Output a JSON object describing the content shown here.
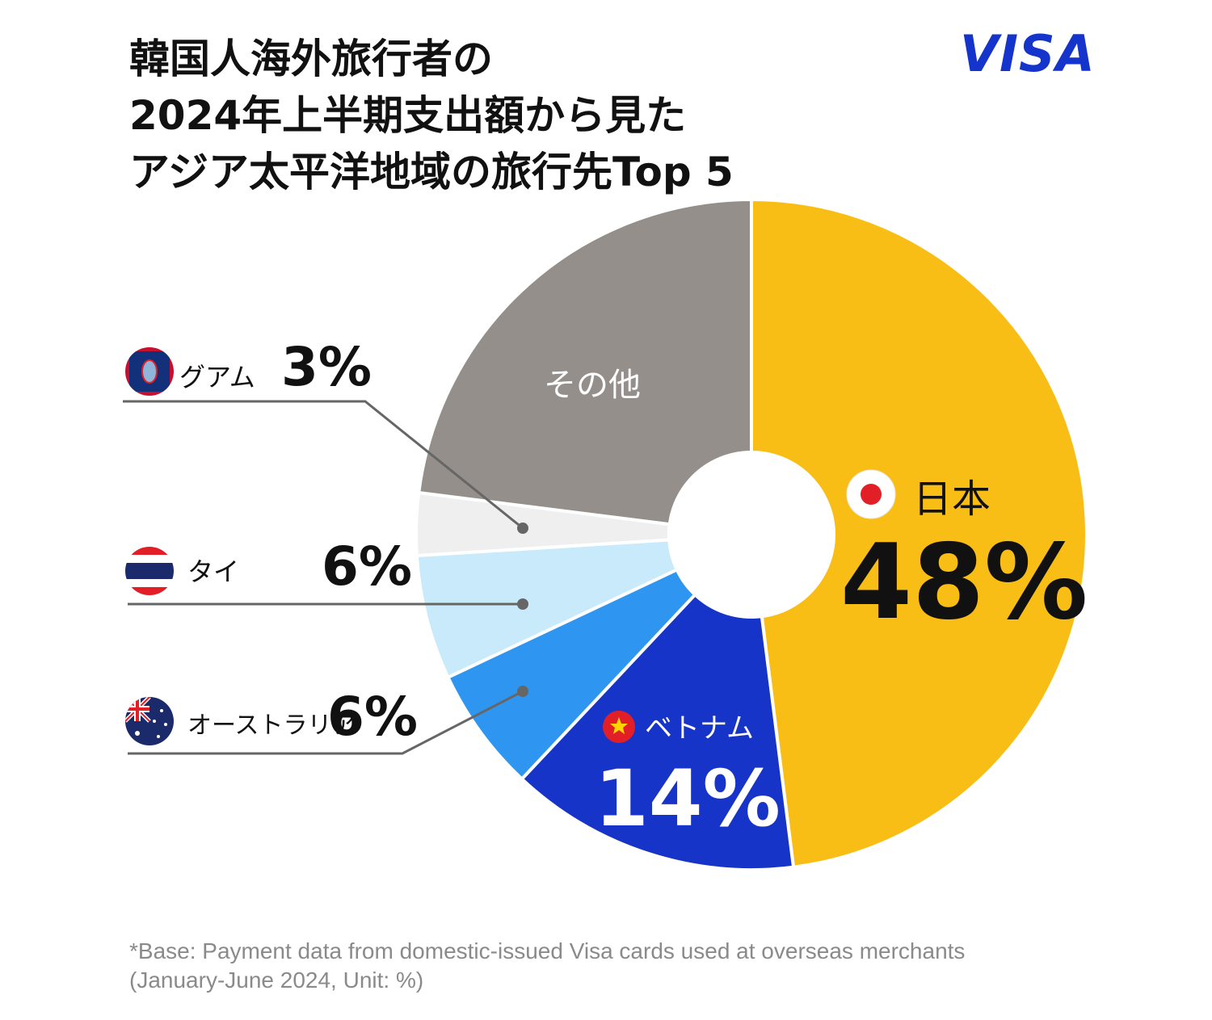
{
  "title": {
    "line1": "韓国人海外旅行者の",
    "line2": "2024年上半期支出額から見た",
    "line3": "アジア太平洋地域の旅行先Top 5"
  },
  "brand": {
    "logo_text": "VISA",
    "color": "#1434CB"
  },
  "footnote": {
    "line1": "*Base: Payment data from domestic-issued Visa cards used at overseas merchants",
    "line2": "(January-June 2024, Unit: %)"
  },
  "chart_data": {
    "type": "pie",
    "title": "韓国人海外旅行者の2024年上半期支出額から見たアジア太平洋地域の旅行先Top 5",
    "unit": "%",
    "slices": [
      {
        "label": "日本",
        "value": 48,
        "value_label": "48%",
        "color": "#F9BE16",
        "flag": "japan-flag-icon"
      },
      {
        "label": "ベトナム",
        "value": 14,
        "value_label": "14%",
        "color": "#1634C8",
        "flag": "vietnam-flag-icon"
      },
      {
        "label": "オーストラリア",
        "value": 6,
        "value_label": "6%",
        "color": "#2E96F0",
        "flag": "australia-flag-icon"
      },
      {
        "label": "タイ",
        "value": 6,
        "value_label": "6%",
        "color": "#C8EAFB",
        "flag": "thailand-flag-icon"
      },
      {
        "label": "グアム",
        "value": 3,
        "value_label": "3%",
        "color": "#EFEFEF",
        "flag": "guam-flag-icon"
      },
      {
        "label": "その他",
        "value": 23,
        "value_label": "",
        "color": "#948F8A",
        "flag": ""
      }
    ]
  }
}
